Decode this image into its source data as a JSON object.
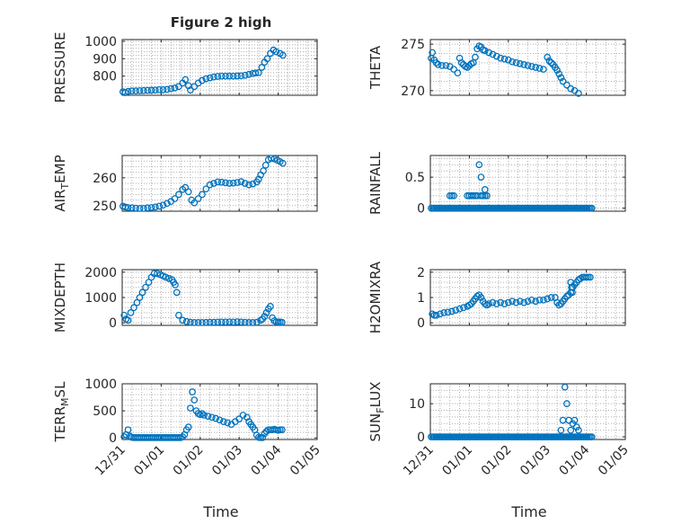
{
  "figure": {
    "title": "Figure 2 high",
    "xlabel": "Time",
    "x_ticks": [
      "12/31",
      "01/01",
      "01/02",
      "01/03",
      "01/04",
      "01/05"
    ],
    "x_range_days": [
      0,
      5
    ],
    "marker_color": "#0072BD",
    "grid": true
  },
  "chart_data": [
    {
      "type": "scatter",
      "ylabel": "PRESSURE",
      "ylabel_parts": [
        {
          "t": "PRESSURE"
        }
      ],
      "ylim": [
        690,
        1010
      ],
      "yticks": [
        800,
        900,
        1000
      ],
      "yticklabels": [
        "800",
        "900",
        "1000"
      ],
      "x": [
        0.02,
        0.08,
        0.15,
        0.25,
        0.35,
        0.45,
        0.55,
        0.65,
        0.75,
        0.85,
        0.95,
        1.05,
        1.15,
        1.25,
        1.35,
        1.45,
        1.55,
        1.62,
        1.7,
        1.75,
        1.85,
        1.95,
        2.05,
        2.15,
        2.25,
        2.35,
        2.45,
        2.55,
        2.65,
        2.75,
        2.85,
        2.95,
        3.05,
        3.15,
        3.25,
        3.35,
        3.42,
        3.5,
        3.58,
        3.65,
        3.72,
        3.8,
        3.88,
        3.95,
        4.05,
        4.12
      ],
      "y": [
        710,
        705,
        712,
        715,
        715,
        716,
        717,
        718,
        719,
        720,
        722,
        722,
        724,
        728,
        732,
        740,
        760,
        780,
        745,
        720,
        740,
        760,
        775,
        785,
        790,
        795,
        798,
        800,
        800,
        800,
        800,
        801,
        802,
        805,
        810,
        815,
        818,
        820,
        850,
        880,
        900,
        930,
        950,
        940,
        930,
        920
      ]
    },
    {
      "type": "scatter",
      "ylabel": "THETA",
      "ylabel_parts": [
        {
          "t": "THETA"
        }
      ],
      "ylim": [
        269.5,
        275.5
      ],
      "yticks": [
        270,
        275
      ],
      "yticklabels": [
        "270",
        "275"
      ],
      "x": [
        0.02,
        0.05,
        0.1,
        0.15,
        0.2,
        0.3,
        0.4,
        0.5,
        0.6,
        0.7,
        0.75,
        0.8,
        0.85,
        0.9,
        0.95,
        1.0,
        1.05,
        1.1,
        1.15,
        1.2,
        1.25,
        1.3,
        1.35,
        1.4,
        1.5,
        1.6,
        1.7,
        1.8,
        1.9,
        2.0,
        2.1,
        2.2,
        2.3,
        2.4,
        2.5,
        2.6,
        2.7,
        2.8,
        2.9,
        3.0,
        3.05,
        3.1,
        3.15,
        3.2,
        3.25,
        3.3,
        3.35,
        3.4,
        3.5,
        3.6,
        3.7,
        3.8
      ],
      "y": [
        273.5,
        274.1,
        273.3,
        273.0,
        272.8,
        272.7,
        272.7,
        272.6,
        272.3,
        271.9,
        273.5,
        273.0,
        272.8,
        272.6,
        272.5,
        272.7,
        272.9,
        273.0,
        273.6,
        274.5,
        274.8,
        274.7,
        274.4,
        274.3,
        274.1,
        273.9,
        273.7,
        273.5,
        273.4,
        273.3,
        273.1,
        273.0,
        272.9,
        272.8,
        272.7,
        272.6,
        272.5,
        272.4,
        272.3,
        273.6,
        273.2,
        273.0,
        272.8,
        272.5,
        272.2,
        271.8,
        271.4,
        271.0,
        270.6,
        270.2,
        270.0,
        269.7
      ]
    },
    {
      "type": "scatter",
      "ylabel": "AIR_TEMP",
      "ylabel_parts": [
        {
          "t": "AIR"
        },
        {
          "t": "T",
          "sub": true
        },
        {
          "t": "EMP"
        }
      ],
      "ylim": [
        248,
        268
      ],
      "yticks": [
        250,
        260
      ],
      "yticklabels": [
        "250",
        "260"
      ],
      "x": [
        0.02,
        0.08,
        0.15,
        0.25,
        0.35,
        0.45,
        0.55,
        0.65,
        0.75,
        0.85,
        0.95,
        1.05,
        1.15,
        1.25,
        1.35,
        1.45,
        1.55,
        1.62,
        1.7,
        1.78,
        1.85,
        1.95,
        2.05,
        2.15,
        2.25,
        2.35,
        2.45,
        2.55,
        2.65,
        2.75,
        2.85,
        2.95,
        3.05,
        3.15,
        3.25,
        3.35,
        3.45,
        3.5,
        3.55,
        3.62,
        3.68,
        3.75,
        3.82,
        3.9,
        3.98,
        4.05,
        4.12
      ],
      "y": [
        249.8,
        249.5,
        249.3,
        249.2,
        249.1,
        249.0,
        249.0,
        249.2,
        249.3,
        249.5,
        249.8,
        250.2,
        250.8,
        251.5,
        252.5,
        254.0,
        255.8,
        256.5,
        255.0,
        252.0,
        251.0,
        252.5,
        254.0,
        256.0,
        257.5,
        258.0,
        258.5,
        258.4,
        258.2,
        258.0,
        258.1,
        258.3,
        258.6,
        258.0,
        257.5,
        257.8,
        258.5,
        259.5,
        261.0,
        262.5,
        264.5,
        266.5,
        267.0,
        266.8,
        266.3,
        265.8,
        265.2
      ]
    },
    {
      "type": "scatter",
      "ylabel": "RAINFALL",
      "ylabel_parts": [
        {
          "t": "RAINFALL"
        }
      ],
      "ylim": [
        -0.05,
        0.85
      ],
      "yticks": [
        0,
        0.5
      ],
      "yticklabels": [
        "0",
        "0.5"
      ],
      "x": [
        0.02,
        0.06,
        0.1,
        0.14,
        0.18,
        0.22,
        0.26,
        0.3,
        0.34,
        0.38,
        0.42,
        0.46,
        0.5,
        0.54,
        0.58,
        0.62,
        0.66,
        0.7,
        0.74,
        0.78,
        0.82,
        0.86,
        0.9,
        0.94,
        0.98,
        1.02,
        1.06,
        1.1,
        1.14,
        1.18,
        1.22,
        1.26,
        1.3,
        1.34,
        1.38,
        1.42,
        1.46,
        1.5,
        1.54,
        1.58,
        1.62,
        1.66,
        1.7,
        1.74,
        1.78,
        1.82,
        1.86,
        1.9,
        1.94,
        1.98,
        2.02,
        2.06,
        2.1,
        2.14,
        2.18,
        2.22,
        2.26,
        2.3,
        2.34,
        2.38,
        2.42,
        2.46,
        2.5,
        2.54,
        2.58,
        2.62,
        2.66,
        2.7,
        2.74,
        2.78,
        2.82,
        2.86,
        2.9,
        2.94,
        2.98,
        3.02,
        3.06,
        3.1,
        3.14,
        3.18,
        3.22,
        3.26,
        3.3,
        3.34,
        3.38,
        3.42,
        3.46,
        3.5,
        3.54,
        3.58,
        3.62,
        3.66,
        3.7,
        3.74,
        3.78,
        3.82,
        3.86,
        3.9,
        3.94,
        3.98,
        4.02,
        4.06,
        4.1,
        4.14,
        0.5,
        0.55,
        0.6,
        0.95,
        1.0,
        1.05,
        1.1,
        1.15,
        1.2,
        1.3,
        1.35,
        1.4,
        1.45,
        1.25,
        1.3,
        1.4
      ],
      "y": [
        0,
        0,
        0,
        0,
        0,
        0,
        0,
        0,
        0,
        0,
        0,
        0,
        0,
        0,
        0,
        0,
        0,
        0,
        0,
        0,
        0,
        0,
        0,
        0,
        0,
        0,
        0,
        0,
        0,
        0,
        0,
        0,
        0,
        0,
        0,
        0,
        0,
        0,
        0,
        0,
        0,
        0,
        0,
        0,
        0,
        0,
        0,
        0,
        0,
        0,
        0,
        0,
        0,
        0,
        0,
        0,
        0,
        0,
        0,
        0,
        0,
        0,
        0,
        0,
        0,
        0,
        0,
        0,
        0,
        0,
        0,
        0,
        0,
        0,
        0,
        0,
        0,
        0,
        0,
        0,
        0,
        0,
        0,
        0,
        0,
        0,
        0,
        0,
        0,
        0,
        0,
        0,
        0,
        0,
        0,
        0,
        0,
        0,
        0,
        0,
        0,
        0,
        0,
        0,
        0.2,
        0.2,
        0.2,
        0.2,
        0.2,
        0.2,
        0.2,
        0.2,
        0.2,
        0.2,
        0.2,
        0.2,
        0.2,
        0.7,
        0.5,
        0.3
      ]
    },
    {
      "type": "scatter",
      "ylabel": "MIXDEPTH",
      "ylabel_parts": [
        {
          "t": "MIXDEPTH"
        }
      ],
      "ylim": [
        -100,
        2100
      ],
      "yticks": [
        0,
        1000,
        2000
      ],
      "yticklabels": [
        "0",
        "1000",
        "2000"
      ],
      "x": [
        0.05,
        0.1,
        0.15,
        0.22,
        0.3,
        0.38,
        0.45,
        0.52,
        0.6,
        0.68,
        0.75,
        0.82,
        0.9,
        0.98,
        1.05,
        1.12,
        1.2,
        1.28,
        1.32,
        1.36,
        1.4,
        1.45,
        1.55,
        1.65,
        1.75,
        1.85,
        1.95,
        2.05,
        2.15,
        2.25,
        2.35,
        2.45,
        2.55,
        2.65,
        2.75,
        2.85,
        2.95,
        3.05,
        3.15,
        3.25,
        3.35,
        3.45,
        3.55,
        3.6,
        3.65,
        3.7,
        3.75,
        3.8,
        3.85,
        3.9,
        3.95,
        4.0,
        4.05,
        4.1
      ],
      "y": [
        300,
        150,
        100,
        400,
        600,
        800,
        1000,
        1200,
        1400,
        1600,
        1800,
        1950,
        1950,
        1900,
        1850,
        1800,
        1750,
        1700,
        1600,
        1500,
        1200,
        300,
        100,
        50,
        20,
        10,
        10,
        10,
        15,
        20,
        20,
        25,
        30,
        30,
        35,
        30,
        40,
        30,
        20,
        10,
        10,
        20,
        100,
        150,
        250,
        400,
        550,
        650,
        200,
        80,
        40,
        30,
        30,
        20
      ]
    },
    {
      "type": "scatter",
      "ylabel": "H2OMIXRA",
      "ylabel_parts": [
        {
          "t": "H2OMIXRA"
        }
      ],
      "ylim": [
        -0.1,
        2.1
      ],
      "yticks": [
        0,
        1,
        2
      ],
      "yticklabels": [
        "0",
        "1",
        "2"
      ],
      "x": [
        0.05,
        0.1,
        0.15,
        0.25,
        0.35,
        0.45,
        0.55,
        0.65,
        0.75,
        0.85,
        0.95,
        1.0,
        1.05,
        1.1,
        1.15,
        1.2,
        1.25,
        1.3,
        1.35,
        1.4,
        1.45,
        1.5,
        1.6,
        1.7,
        1.8,
        1.9,
        2.0,
        2.1,
        2.2,
        2.3,
        2.4,
        2.5,
        2.6,
        2.7,
        2.8,
        2.9,
        3.0,
        3.1,
        3.2,
        3.25,
        3.3,
        3.35,
        3.4,
        3.45,
        3.5,
        3.55,
        3.6,
        3.65,
        3.7,
        3.75,
        3.8,
        3.85,
        3.9,
        3.95,
        4.0,
        4.05,
        4.1,
        3.6,
        3.62,
        3.64
      ],
      "y": [
        0.35,
        0.3,
        0.3,
        0.35,
        0.4,
        0.42,
        0.45,
        0.5,
        0.55,
        0.6,
        0.65,
        0.7,
        0.75,
        0.85,
        0.95,
        1.05,
        1.1,
        1.0,
        0.85,
        0.75,
        0.7,
        0.75,
        0.8,
        0.75,
        0.8,
        0.75,
        0.8,
        0.85,
        0.8,
        0.85,
        0.8,
        0.85,
        0.9,
        0.85,
        0.9,
        0.9,
        0.95,
        1.0,
        1.0,
        0.8,
        0.7,
        0.75,
        0.85,
        0.95,
        1.05,
        1.1,
        1.2,
        1.4,
        1.5,
        1.6,
        1.7,
        1.75,
        1.8,
        1.8,
        1.8,
        1.8,
        1.8,
        1.6,
        1.4,
        1.2
      ]
    },
    {
      "type": "scatter",
      "ylabel": "TERR_MSL",
      "ylabel_parts": [
        {
          "t": "TERR"
        },
        {
          "t": "M",
          "sub": true
        },
        {
          "t": "SL"
        }
      ],
      "ylim": [
        -30,
        1000
      ],
      "yticks": [
        0,
        500,
        1000
      ],
      "yticklabels": [
        "0",
        "500",
        "1000"
      ],
      "x": [
        0.05,
        0.1,
        0.15,
        0.2,
        0.25,
        0.3,
        0.35,
        0.4,
        0.45,
        0.5,
        0.55,
        0.6,
        0.65,
        0.7,
        0.75,
        0.8,
        0.85,
        0.9,
        0.95,
        1.0,
        1.05,
        1.1,
        1.15,
        1.2,
        1.25,
        1.3,
        1.35,
        1.4,
        1.45,
        1.5,
        1.55,
        1.6,
        1.65,
        1.7,
        1.75,
        1.8,
        1.85,
        1.9,
        1.95,
        2.0,
        2.05,
        2.1,
        2.2,
        2.3,
        2.4,
        2.5,
        2.6,
        2.7,
        2.8,
        2.9,
        3.0,
        3.1,
        3.2,
        3.25,
        3.3,
        3.35,
        3.4,
        3.45,
        3.5,
        3.55,
        3.6,
        3.65,
        3.7,
        3.75,
        3.8,
        3.85,
        3.9,
        3.95,
        4.0,
        4.05,
        4.1
      ],
      "y": [
        20,
        60,
        150,
        30,
        10,
        5,
        5,
        5,
        5,
        5,
        5,
        5,
        5,
        5,
        5,
        5,
        5,
        5,
        5,
        5,
        5,
        5,
        5,
        5,
        5,
        5,
        5,
        5,
        5,
        5,
        20,
        60,
        150,
        200,
        550,
        850,
        700,
        500,
        450,
        430,
        450,
        420,
        400,
        380,
        360,
        330,
        300,
        280,
        250,
        300,
        350,
        420,
        380,
        300,
        250,
        200,
        150,
        50,
        10,
        5,
        5,
        80,
        120,
        150,
        150,
        150,
        160,
        150,
        140,
        150,
        150
      ]
    },
    {
      "type": "scatter",
      "ylabel": "SUN_FLUX",
      "ylabel_parts": [
        {
          "t": "SUN"
        },
        {
          "t": "F",
          "sub": true
        },
        {
          "t": "LUX"
        }
      ],
      "ylim": [
        -0.8,
        16
      ],
      "yticks": [
        0,
        10
      ],
      "yticklabels": [
        "0",
        "10"
      ],
      "x": [
        0.02,
        0.06,
        0.1,
        0.14,
        0.18,
        0.22,
        0.26,
        0.3,
        0.34,
        0.38,
        0.42,
        0.46,
        0.5,
        0.54,
        0.58,
        0.62,
        0.66,
        0.7,
        0.74,
        0.78,
        0.82,
        0.86,
        0.9,
        0.94,
        0.98,
        1.02,
        1.06,
        1.1,
        1.14,
        1.18,
        1.22,
        1.26,
        1.3,
        1.34,
        1.38,
        1.42,
        1.46,
        1.5,
        1.54,
        1.58,
        1.62,
        1.66,
        1.7,
        1.74,
        1.78,
        1.82,
        1.86,
        1.9,
        1.94,
        1.98,
        2.02,
        2.06,
        2.1,
        2.14,
        2.18,
        2.22,
        2.26,
        2.3,
        2.34,
        2.38,
        2.42,
        2.46,
        2.5,
        2.54,
        2.58,
        2.62,
        2.66,
        2.7,
        2.74,
        2.78,
        2.82,
        2.86,
        2.9,
        2.94,
        2.98,
        3.02,
        3.06,
        3.1,
        3.14,
        3.18,
        3.22,
        3.26,
        3.3,
        3.34,
        3.38,
        3.42,
        3.46,
        3.5,
        3.54,
        3.58,
        3.62,
        3.66,
        3.7,
        3.74,
        3.78,
        3.82,
        3.86,
        3.9,
        3.94,
        3.98,
        4.02,
        4.06,
        4.1,
        4.14,
        3.35,
        3.4,
        3.45,
        3.5,
        3.55,
        3.6,
        3.65,
        3.7,
        3.75,
        3.8
      ],
      "y": [
        0,
        0,
        0,
        0,
        0,
        0,
        0,
        0,
        0,
        0,
        0,
        0,
        0,
        0,
        0,
        0,
        0,
        0,
        0,
        0,
        0,
        0,
        0,
        0,
        0,
        0,
        0,
        0,
        0,
        0,
        0,
        0,
        0,
        0,
        0,
        0,
        0,
        0,
        0,
        0,
        0,
        0,
        0,
        0,
        0,
        0,
        0,
        0,
        0,
        0,
        0,
        0,
        0,
        0,
        0,
        0,
        0,
        0,
        0,
        0,
        0,
        0,
        0,
        0,
        0,
        0,
        0,
        0,
        0,
        0,
        0,
        0,
        0,
        0,
        0,
        0,
        0,
        0,
        0,
        0,
        0,
        0,
        0,
        0,
        0,
        0,
        0,
        0,
        0,
        0,
        0,
        0,
        0,
        0,
        0,
        0,
        0,
        0,
        0,
        0,
        0,
        0,
        0,
        0,
        2,
        5,
        15,
        10,
        5,
        2,
        4,
        5,
        3,
        2
      ]
    }
  ]
}
